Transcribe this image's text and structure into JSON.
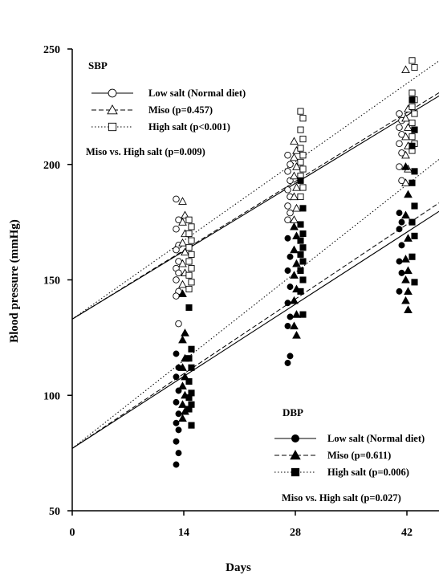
{
  "chart_data": {
    "type": "scatter",
    "xlabel": "Days",
    "ylabel": "Blood pressure (mmHg)",
    "xlim": [
      0,
      48
    ],
    "ylim": [
      50,
      250
    ],
    "x_ticks": [
      0,
      14,
      28,
      42
    ],
    "y_ticks": [
      50,
      100,
      150,
      200,
      250
    ],
    "groups": [
      {
        "id": "sbp",
        "title": "SBP",
        "legend_placement": "top-left",
        "comparison": "Miso vs. High salt (p=0.009)",
        "series": [
          {
            "name": "Low salt (Normal diet)",
            "marker": "circle",
            "filled": false,
            "line": "solid",
            "fit": {
              "intercept": 133,
              "slope": 2.1
            },
            "points": {
              "14": [
                185,
                176,
                172,
                165,
                163,
                158,
                155,
                153,
                150,
                145,
                143,
                131
              ],
              "28": [
                204,
                200,
                197,
                193,
                189,
                186,
                182,
                179,
                176
              ],
              "42": [
                222,
                219,
                216,
                213,
                209,
                205,
                199,
                193
              ]
            }
          },
          {
            "name": "Miso (p=0.457)",
            "marker": "triangle",
            "filled": false,
            "line": "dashed",
            "fit": {
              "intercept": 133,
              "slope": 2.13
            },
            "points": {
              "14": [
                184,
                178,
                175,
                170,
                166,
                162,
                157,
                153,
                148
              ],
              "28": [
                210,
                206,
                203,
                199,
                195,
                190,
                186,
                181,
                176
              ],
              "42": [
                241,
                224,
                220,
                216,
                212,
                208,
                204,
                198,
                192
              ]
            }
          },
          {
            "name": "High salt (p<0.001)",
            "marker": "square",
            "filled": false,
            "line": "dotted",
            "fit": {
              "intercept": 133,
              "slope": 2.43
            },
            "points": {
              "14": [
                176,
                173,
                170,
                167,
                164,
                161,
                158,
                155,
                152,
                149,
                146
              ],
              "28": [
                223,
                220,
                215,
                211,
                207,
                204,
                201,
                198,
                195,
                190,
                186
              ],
              "42": [
                245,
                242,
                231,
                228,
                225,
                222,
                218,
                215,
                212,
                209,
                206
              ]
            }
          }
        ]
      },
      {
        "id": "dbp",
        "title": "DBP",
        "legend_placement": "bottom-right",
        "comparison": "Miso vs. High salt (p=0.027)",
        "series": [
          {
            "name": "Low salt (Normal diet)",
            "marker": "circle",
            "filled": true,
            "line": "solid",
            "fit": {
              "intercept": 77,
              "slope": 2.23
            },
            "points": {
              "14": [
                118,
                112,
                108,
                102,
                97,
                92,
                88,
                85,
                80,
                75,
                70
              ],
              "28": [
                168,
                160,
                154,
                147,
                140,
                134,
                130,
                117,
                114
              ],
              "42": [
                179,
                175,
                172,
                165,
                158,
                153,
                145
              ]
            }
          },
          {
            "name": "Miso (p=0.611)",
            "marker": "triangle",
            "filled": true,
            "line": "dashed",
            "fit": {
              "intercept": 77,
              "slope": 2.31
            },
            "points": {
              "14": [
                144,
                127,
                124,
                116,
                112,
                108,
                104,
                100,
                96,
                93,
                90
              ],
              "28": [
                173,
                169,
                163,
                157,
                152,
                146,
                141,
                135,
                130,
                126
              ],
              "42": [
                199,
                187,
                178,
                168,
                159,
                154,
                150,
                145,
                141,
                137
              ]
            }
          },
          {
            "name": "High salt (p=0.006)",
            "marker": "square",
            "filled": true,
            "line": "dotted",
            "fit": {
              "intercept": 77,
              "slope": 2.72
            },
            "points": {
              "14": [
                138,
                120,
                116,
                112,
                106,
                101,
                99,
                96,
                94,
                87
              ],
              "28": [
                193,
                181,
                174,
                170,
                167,
                164,
                161,
                158,
                154,
                150,
                145,
                135
              ],
              "42": [
                228,
                215,
                208,
                197,
                192,
                182,
                175,
                169,
                160,
                149
              ]
            }
          }
        ]
      }
    ]
  }
}
